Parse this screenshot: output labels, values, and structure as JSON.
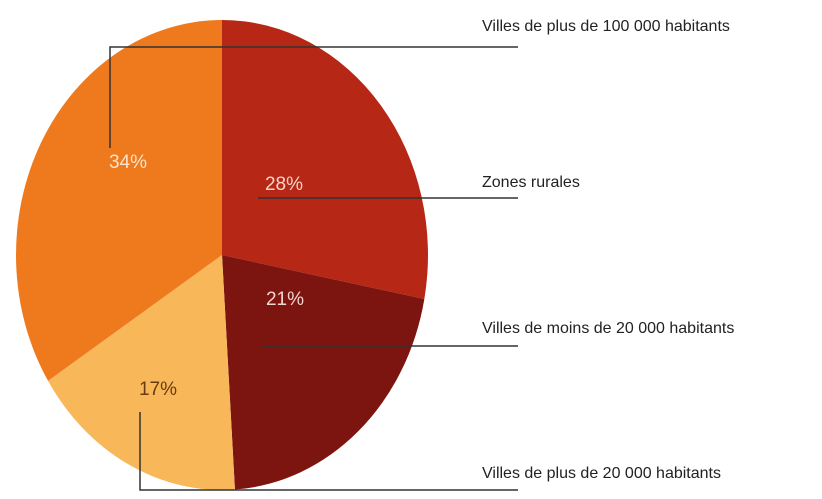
{
  "chart_data": {
    "type": "pie",
    "title": "",
    "slices": [
      {
        "label": "Zones rurales",
        "value": 28,
        "value_label": "28%",
        "color": "#B62715",
        "label_color": "#F6D4C8"
      },
      {
        "label": "Villes de moins de 20 000 habitants",
        "value": 21,
        "value_label": "21%",
        "color": "#7C1410",
        "label_color": "#F2D6CF"
      },
      {
        "label": "Villes de plus de 20 000 habitants",
        "value": 17,
        "value_label": "17%",
        "color": "#F8B85A",
        "label_color": "#6A3A10"
      },
      {
        "label": "Villes de plus de 100 000 habitants",
        "value": 34,
        "value_label": "34%",
        "color": "#EF7A1E",
        "label_color": "#FBE3C9"
      }
    ],
    "legend": "right"
  }
}
